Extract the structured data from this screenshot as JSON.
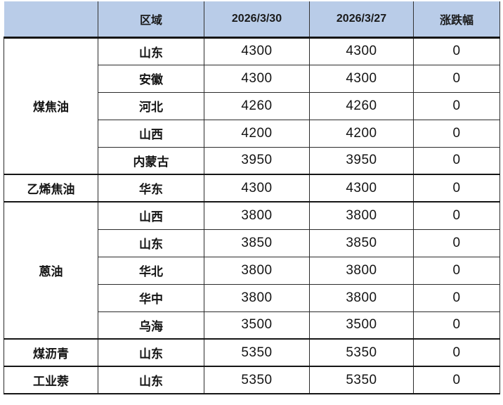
{
  "colors": {
    "header_bg": "#B9CCE8",
    "border": "#2B2B2B",
    "thick_border": "#151515",
    "text": "#141414"
  },
  "table": {
    "columns": [
      "",
      "区域",
      "2026/3/30",
      "2026/3/27",
      "涨跌幅"
    ],
    "groups": [
      {
        "product": "煤焦油",
        "rows": [
          {
            "region": "山东",
            "price_new": "4300",
            "price_old": "4300",
            "change": "0"
          },
          {
            "region": "安徽",
            "price_new": "4300",
            "price_old": "4300",
            "change": "0"
          },
          {
            "region": "河北",
            "price_new": "4260",
            "price_old": "4260",
            "change": "0"
          },
          {
            "region": "山西",
            "price_new": "4200",
            "price_old": "4200",
            "change": "0"
          },
          {
            "region": "内蒙古",
            "price_new": "3950",
            "price_old": "3950",
            "change": "0"
          }
        ]
      },
      {
        "product": "乙烯焦油",
        "rows": [
          {
            "region": "华东",
            "price_new": "4300",
            "price_old": "4300",
            "change": "0"
          }
        ]
      },
      {
        "product": "蒽油",
        "rows": [
          {
            "region": "山西",
            "price_new": "3800",
            "price_old": "3800",
            "change": "0"
          },
          {
            "region": "山东",
            "price_new": "3850",
            "price_old": "3850",
            "change": "0"
          },
          {
            "region": "华北",
            "price_new": "3800",
            "price_old": "3800",
            "change": "0"
          },
          {
            "region": "华中",
            "price_new": "3800",
            "price_old": "3800",
            "change": "0"
          },
          {
            "region": "乌海",
            "price_new": "3500",
            "price_old": "3500",
            "change": "0"
          }
        ]
      },
      {
        "product": "煤沥青",
        "rows": [
          {
            "region": "山东",
            "price_new": "5350",
            "price_old": "5350",
            "change": "0"
          }
        ]
      },
      {
        "product": "工业萘",
        "rows": [
          {
            "region": "山东",
            "price_new": "5350",
            "price_old": "5350",
            "change": "0"
          }
        ]
      }
    ]
  },
  "chart_data": {
    "type": "table",
    "columns": [
      "",
      "区域",
      "2026/3/30",
      "2026/3/27",
      "涨跌幅"
    ],
    "rows": [
      [
        "煤焦油",
        "山东",
        4300,
        4300,
        0
      ],
      [
        "煤焦油",
        "安徽",
        4300,
        4300,
        0
      ],
      [
        "煤焦油",
        "河北",
        4260,
        4260,
        0
      ],
      [
        "煤焦油",
        "山西",
        4200,
        4200,
        0
      ],
      [
        "煤焦油",
        "内蒙古",
        3950,
        3950,
        0
      ],
      [
        "乙烯焦油",
        "华东",
        4300,
        4300,
        0
      ],
      [
        "蒽油",
        "山西",
        3800,
        3800,
        0
      ],
      [
        "蒽油",
        "山东",
        3850,
        3850,
        0
      ],
      [
        "蒽油",
        "华北",
        3800,
        3800,
        0
      ],
      [
        "蒽油",
        "华中",
        3800,
        3800,
        0
      ],
      [
        "蒽油",
        "乌海",
        3500,
        3500,
        0
      ],
      [
        "煤沥青",
        "山东",
        5350,
        5350,
        0
      ],
      [
        "工业萘",
        "山东",
        5350,
        5350,
        0
      ]
    ],
    "layout": {
      "merged_first_column_groups": true,
      "header_background": "#B9CCE8",
      "grid": true
    }
  }
}
